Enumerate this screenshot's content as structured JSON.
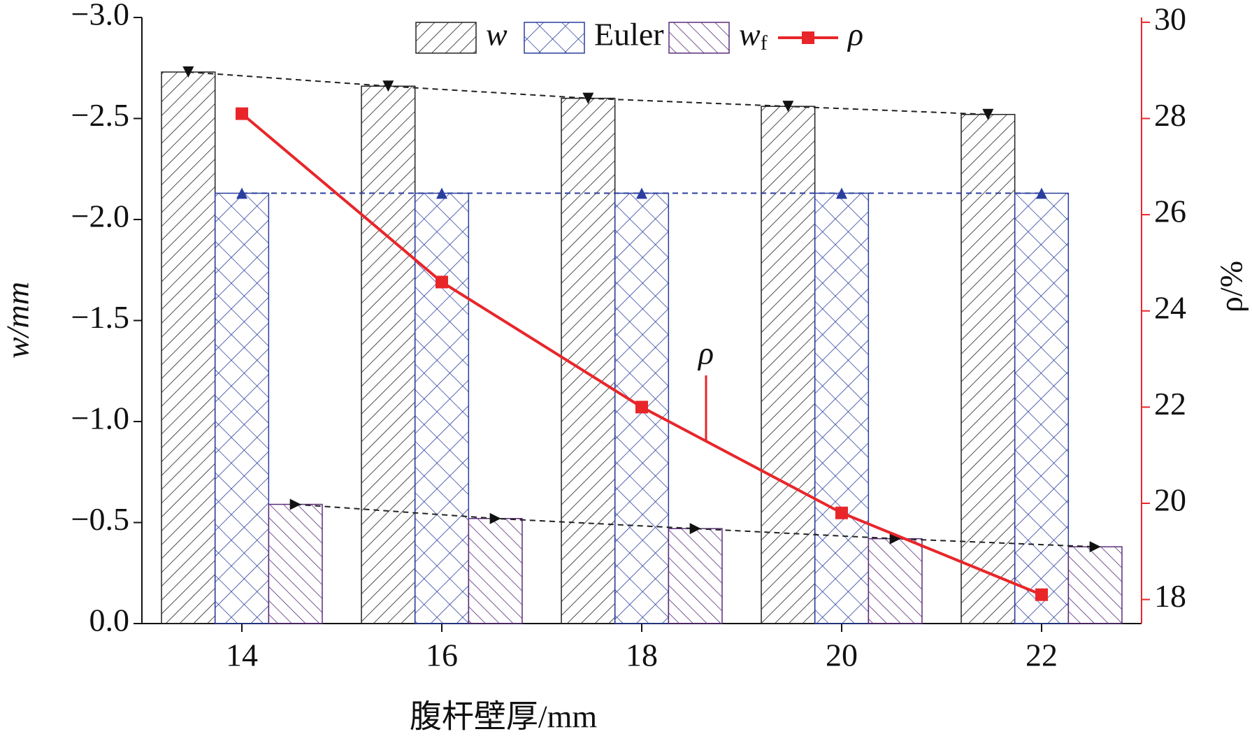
{
  "chart_data": {
    "type": "bar",
    "xlabel": "腹杆壁厚/mm",
    "ylabel": "w/mm",
    "y2label": "ρ/%",
    "categories": [
      "14",
      "16",
      "18",
      "20",
      "22"
    ],
    "series": [
      {
        "name": "w",
        "color": "#222222",
        "values": [
          -2.73,
          -2.66,
          -2.6,
          -2.56,
          -2.52
        ]
      },
      {
        "name": "Euler",
        "color": "#2b3f9e",
        "values": [
          -2.13,
          -2.13,
          -2.13,
          -2.13,
          -2.13
        ]
      },
      {
        "name": "wf",
        "color": "#5a2d7a",
        "values": [
          -0.59,
          -0.52,
          -0.47,
          -0.42,
          -0.38
        ]
      },
      {
        "name": "ρ",
        "color": "#e8262a",
        "axis": "y2",
        "type": "line",
        "values": [
          28.1,
          24.6,
          22.0,
          19.8,
          18.1
        ]
      }
    ],
    "annotation": "ρ",
    "ylim": [
      0,
      -3.0
    ],
    "yticks": [
      {
        "value": 0,
        "label": "0.0"
      },
      {
        "value": -0.5,
        "label": "−0.5"
      },
      {
        "value": -1.0,
        "label": "−1.0"
      },
      {
        "value": -1.5,
        "label": "−1.5"
      },
      {
        "value": -2.0,
        "label": "−2.0"
      },
      {
        "value": -2.5,
        "label": "−2.5"
      },
      {
        "value": -3.0,
        "label": "−3.0"
      }
    ],
    "y2lim": [
      17.5,
      30.1
    ],
    "y2ticks": [
      18,
      20,
      22,
      24,
      26,
      28,
      30
    ],
    "grid": false
  }
}
